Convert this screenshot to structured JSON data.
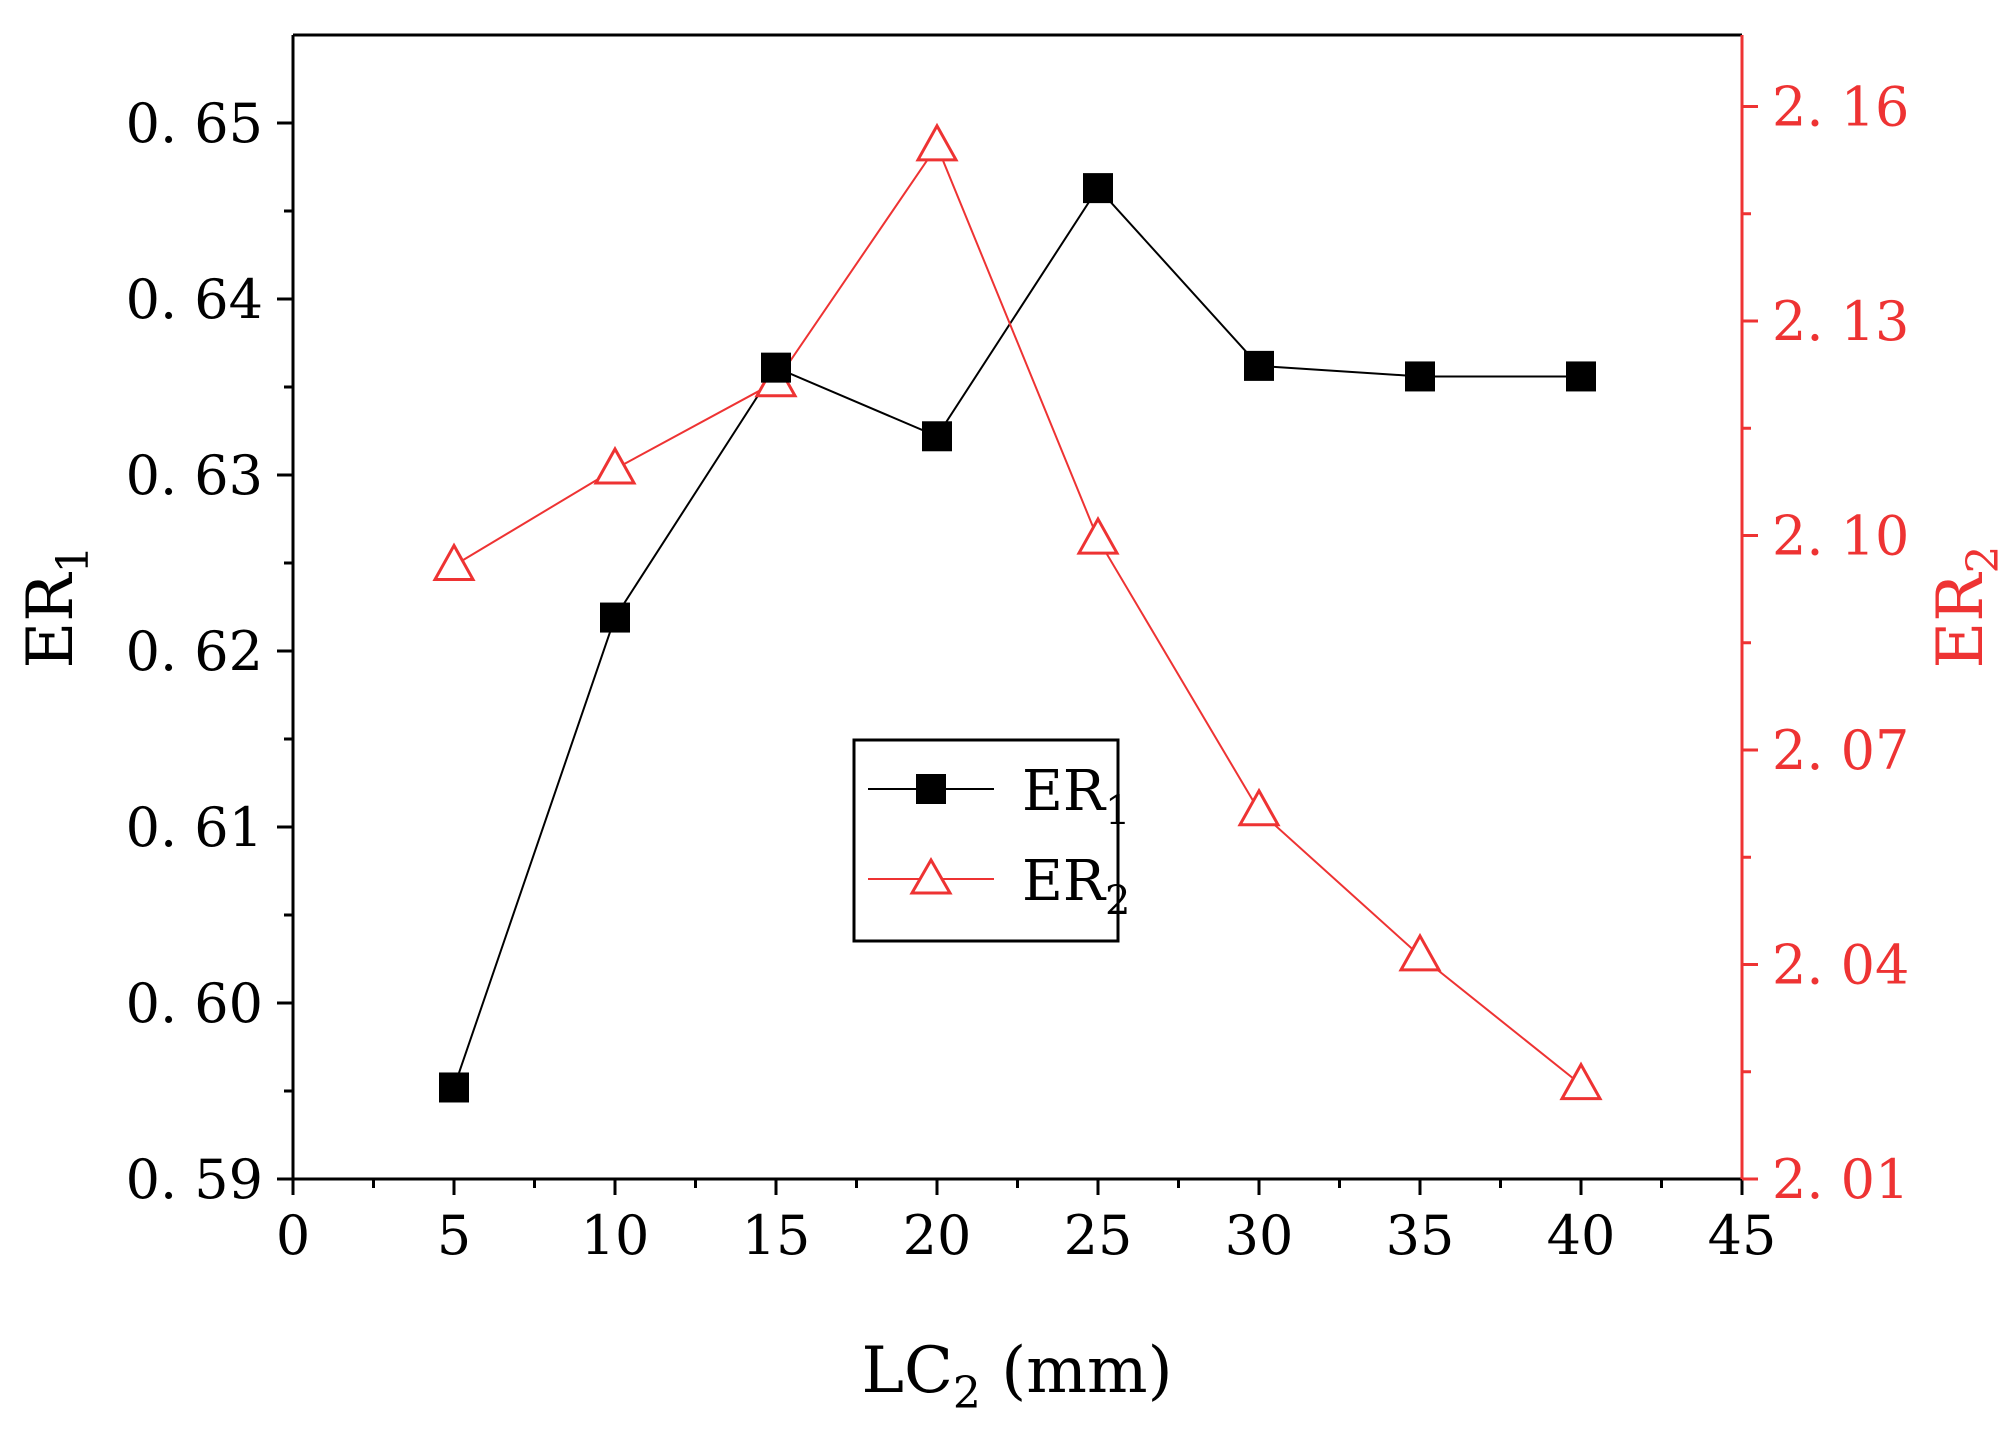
{
  "colors": {
    "series1": "#000000",
    "series2": "#ee3333",
    "axis_left": "#000000",
    "axis_right": "#ee3333",
    "background": "#ffffff"
  },
  "chart_data": {
    "type": "line",
    "title": "",
    "xlabel": {
      "main": "LC",
      "sub": "2",
      "unit": " (mm)"
    },
    "ylabel_left": {
      "main": "ER",
      "sub": "1"
    },
    "ylabel_right": {
      "main": "ER",
      "sub": "2"
    },
    "xlim": [
      0,
      45
    ],
    "ylim_left": [
      0.59,
      0.655
    ],
    "ylim_right": [
      2.01,
      2.17
    ],
    "grid": false,
    "legend_position": "center",
    "x": [
      5,
      10,
      15,
      20,
      25,
      30,
      35,
      40
    ],
    "x_ticks": [
      0,
      5,
      10,
      15,
      20,
      25,
      30,
      35,
      40,
      45
    ],
    "x_tick_labels": [
      "0",
      "5",
      "10",
      "15",
      "20",
      "25",
      "30",
      "35",
      "40",
      "45"
    ],
    "y_left_ticks": [
      0.59,
      0.6,
      0.61,
      0.62,
      0.63,
      0.64,
      0.65
    ],
    "y_left_tick_labels": [
      "0. 59",
      "0. 60",
      "0. 61",
      "0. 62",
      "0. 63",
      "0. 64",
      "0. 65"
    ],
    "y_right_ticks": [
      2.01,
      2.04,
      2.07,
      2.1,
      2.13,
      2.16
    ],
    "y_right_tick_labels": [
      "2. 01",
      "2. 04",
      "2. 07",
      "2. 10",
      "2. 13",
      "2. 16"
    ],
    "series": [
      {
        "name": {
          "main": "ER",
          "sub": "1"
        },
        "axis": "left",
        "marker": "filled-square",
        "values": [
          0.5952,
          0.6219,
          0.6361,
          0.6322,
          0.6463,
          0.6362,
          0.6356,
          0.6356
        ]
      },
      {
        "name": {
          "main": "ER",
          "sub": "2"
        },
        "axis": "right",
        "marker": "open-triangle",
        "values": [
          2.0958,
          2.1093,
          2.1215,
          2.1545,
          2.0995,
          2.0615,
          2.0412,
          2.0232
        ]
      }
    ]
  }
}
